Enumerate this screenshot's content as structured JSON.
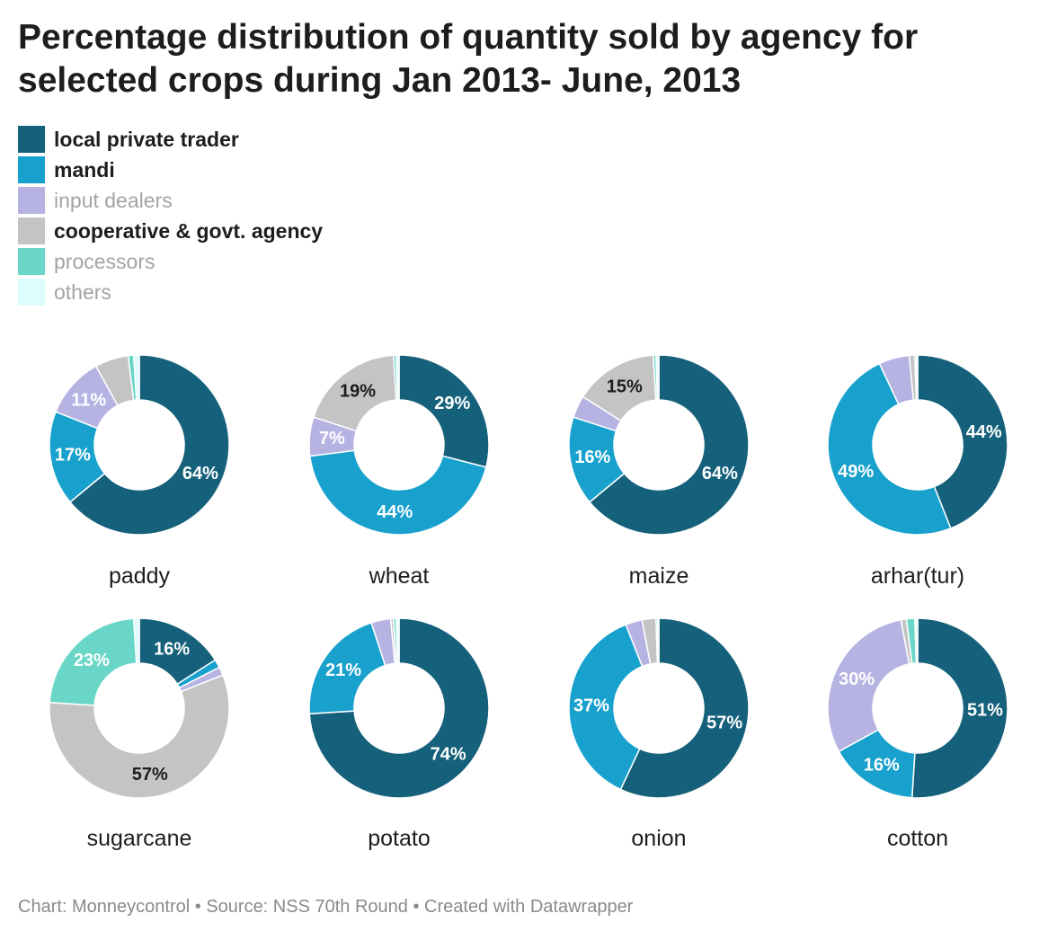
{
  "title": "Percentage distribution of quantity sold by agency for selected crops during Jan 2013- June, 2013",
  "footer": "Chart: Monneycontrol • Source: NSS 70th Round • Created with Datawrapper",
  "legend": [
    {
      "label": "local private trader",
      "color": "#15607a",
      "style": "bold"
    },
    {
      "label": "mandi",
      "color": "#18a1cd",
      "style": "bold"
    },
    {
      "label": "input dealers",
      "color": "#b6b3e3",
      "style": "muted"
    },
    {
      "label": "cooperative & govt. agency",
      "color": "#c4c4c4",
      "style": "bold"
    },
    {
      "label": "processors",
      "color": "#6ad6c8",
      "style": "muted"
    },
    {
      "label": "others",
      "color": "#dcfcfd",
      "style": "muted"
    }
  ],
  "chart_data": {
    "type": "pie",
    "variant": "donut",
    "categories": [
      "local private trader",
      "mandi",
      "input dealers",
      "cooperative & govt. agency",
      "processors",
      "others"
    ],
    "colors": [
      "#15607a",
      "#18a1cd",
      "#b6b3e3",
      "#c4c4c4",
      "#6ad6c8",
      "#dcfcfd"
    ],
    "label_colors": [
      "#ffffff",
      "#ffffff",
      "#ffffff",
      "#1d1d1d",
      "#ffffff",
      "#1d1d1d"
    ],
    "charts": [
      {
        "name": "paddy",
        "values": [
          64,
          17,
          11,
          6,
          1,
          1
        ],
        "labels": [
          "64%",
          "17%",
          "11%",
          "",
          "",
          ""
        ]
      },
      {
        "name": "wheat",
        "values": [
          29,
          44,
          7,
          19,
          0.5,
          0.5
        ],
        "labels": [
          "29%",
          "44%",
          "7%",
          "19%",
          "",
          ""
        ]
      },
      {
        "name": "maize",
        "values": [
          64,
          16,
          4,
          15,
          0.5,
          0.5
        ],
        "labels": [
          "64%",
          "16%",
          "",
          "15%",
          "",
          ""
        ]
      },
      {
        "name": "arhar(tur)",
        "values": [
          44,
          49,
          5.5,
          1,
          0.3,
          0.2
        ],
        "labels": [
          "44%",
          "49%",
          "",
          "",
          "",
          ""
        ]
      },
      {
        "name": "sugarcane",
        "values": [
          16,
          1.5,
          1.5,
          57,
          23,
          1
        ],
        "labels": [
          "16%",
          "",
          "",
          "57%",
          "23%",
          ""
        ]
      },
      {
        "name": "potato",
        "values": [
          74,
          21,
          3.5,
          0.5,
          0.5,
          0.5
        ],
        "labels": [
          "74%",
          "21%",
          "",
          "",
          "",
          ""
        ]
      },
      {
        "name": "onion",
        "values": [
          57,
          37,
          3,
          2.5,
          0.3,
          0.2
        ],
        "labels": [
          "57%",
          "37%",
          "",
          "",
          "",
          ""
        ]
      },
      {
        "name": "cotton",
        "values": [
          51,
          16,
          30,
          1,
          1.5,
          0.5
        ],
        "labels": [
          "51%",
          "16%",
          "30%",
          "",
          "",
          ""
        ]
      }
    ]
  }
}
